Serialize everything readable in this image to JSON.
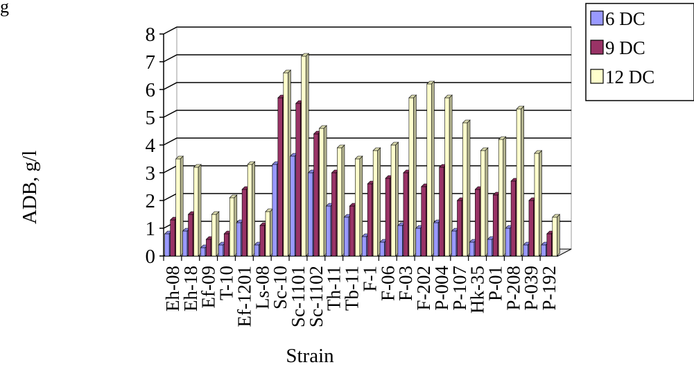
{
  "corner_label": "g",
  "chart_data": {
    "type": "bar",
    "title": "",
    "xlabel": "Strain",
    "ylabel": "ADB, g/l",
    "ylim": [
      0,
      8
    ],
    "yticks": [
      "0",
      "1",
      "2",
      "3",
      "4",
      "5",
      "6",
      "7",
      "8"
    ],
    "grid": true,
    "legend_position": "top-right",
    "categories": [
      "Eh-08",
      "Eh-18",
      "Ef-09",
      "T-10",
      "Ef-1201",
      "Ls-08",
      "Sc-10",
      "Sc-1101",
      "Sc-1102",
      "Th-11",
      "Tb-11",
      "F-1",
      "F-06",
      "F-03",
      "F-202",
      "P-004",
      "P-107",
      "Hk-35",
      "P-01",
      "P-208",
      "P-039",
      "P-192"
    ],
    "series": [
      {
        "name": "6 DC",
        "color": "#9999ff",
        "values": [
          0.8,
          0.9,
          0.3,
          0.4,
          1.2,
          0.4,
          3.3,
          3.6,
          3.0,
          1.8,
          1.4,
          0.7,
          0.5,
          1.1,
          1.0,
          1.2,
          0.9,
          0.5,
          0.6,
          1.0,
          0.4,
          0.4
        ]
      },
      {
        "name": "9 DC",
        "color": "#993366",
        "values": [
          1.3,
          1.5,
          0.6,
          0.8,
          2.4,
          1.1,
          5.7,
          5.5,
          4.4,
          3.0,
          1.8,
          2.6,
          2.8,
          3.0,
          2.5,
          3.2,
          2.0,
          2.4,
          2.2,
          2.7,
          2.0,
          0.8
        ]
      },
      {
        "name": "12 DC",
        "color": "#ffffcc",
        "values": [
          3.5,
          3.2,
          1.5,
          2.1,
          3.3,
          1.6,
          6.6,
          7.2,
          4.6,
          3.9,
          3.5,
          3.8,
          4.0,
          5.7,
          6.2,
          5.7,
          4.8,
          3.8,
          4.2,
          5.3,
          3.7,
          1.4
        ]
      }
    ]
  }
}
